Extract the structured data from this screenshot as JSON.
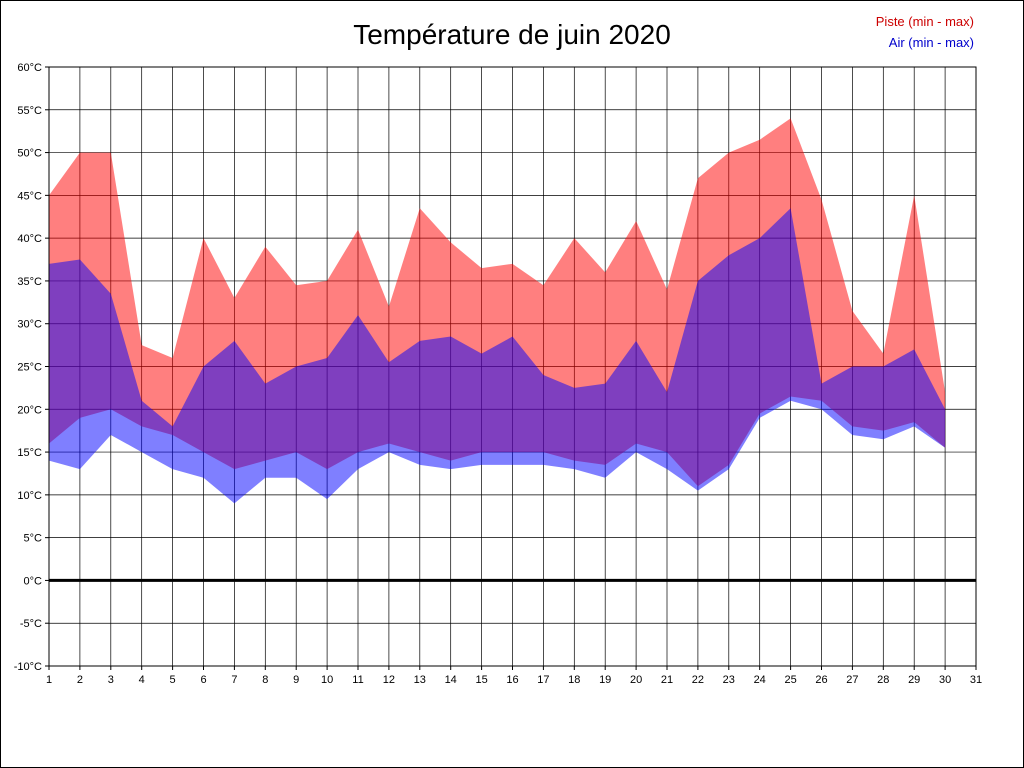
{
  "chart_data": {
    "type": "area",
    "title": "Température de juin 2020",
    "legend": {
      "piste": "Piste (min - max)",
      "air": "Air (min - max)"
    },
    "xlabel": "",
    "ylabel": "",
    "unit": "°C",
    "xlim": [
      1,
      31
    ],
    "ylim": [
      -10,
      60
    ],
    "y_step": 5,
    "grid": true,
    "legend_position": "top-right",
    "y_tick_labels": [
      "60°C",
      "55°C",
      "50°C",
      "45°C",
      "40°C",
      "35°C",
      "30°C",
      "25°C",
      "20°C",
      "15°C",
      "10°C",
      "5°C",
      "0°C",
      "-5°C",
      "-10°C"
    ],
    "x_tick_labels": [
      "1",
      "2",
      "3",
      "4",
      "5",
      "6",
      "7",
      "8",
      "9",
      "10",
      "11",
      "12",
      "13",
      "14",
      "15",
      "16",
      "17",
      "18",
      "19",
      "20",
      "21",
      "22",
      "23",
      "24",
      "25",
      "26",
      "27",
      "28",
      "29",
      "30",
      "31"
    ],
    "days": [
      1,
      2,
      3,
      4,
      5,
      6,
      7,
      8,
      9,
      10,
      11,
      12,
      13,
      14,
      15,
      16,
      17,
      18,
      19,
      20,
      21,
      22,
      23,
      24,
      25,
      26,
      27,
      28,
      29,
      30
    ],
    "series": [
      {
        "name": "Piste (min - max)",
        "min": [
          16,
          19,
          20,
          18,
          17,
          15,
          13,
          14,
          15,
          13,
          15,
          16,
          15,
          14,
          15,
          15,
          15,
          14,
          13.5,
          16,
          15,
          11,
          13.5,
          19.5,
          21.5,
          21,
          18,
          17.5,
          18.5,
          15.5
        ],
        "max": [
          45,
          50,
          50,
          27.5,
          26,
          40,
          33,
          39,
          34.5,
          35,
          41,
          32,
          43.5,
          39.5,
          36.5,
          37,
          34.5,
          40,
          36,
          42,
          34,
          47,
          50,
          51.5,
          54,
          44.5,
          31.5,
          26.5,
          45,
          22
        ]
      },
      {
        "name": "Air (min - max)",
        "min": [
          14,
          13,
          17,
          15,
          13,
          12,
          9,
          12,
          12,
          9.5,
          13,
          15,
          13.5,
          13,
          13.5,
          13.5,
          13.5,
          13,
          12,
          15,
          13,
          10.5,
          13,
          19,
          21,
          20,
          17,
          16.5,
          18,
          15.5
        ],
        "max": [
          37,
          37.5,
          33.5,
          21,
          18,
          25,
          28,
          23,
          25,
          26,
          31,
          25.5,
          28,
          28.5,
          26.5,
          28.5,
          24,
          22.5,
          23,
          28,
          22,
          35,
          38,
          40,
          43.5,
          23,
          25,
          25,
          27,
          20
        ]
      }
    ],
    "colors": {
      "piste_fill": "rgba(255,0,0,0.5)",
      "air_fill": "rgba(0,0,255,0.5)",
      "piste_legend": "#cc0000",
      "air_legend": "#0000cc",
      "grid": "#000000",
      "zero_line": "#000000"
    }
  }
}
